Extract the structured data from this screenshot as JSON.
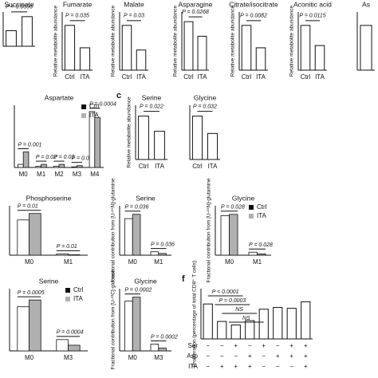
{
  "chart_data": [
    {
      "type": "bar",
      "title": "Succinate",
      "values": [
        1.0,
        1.9
      ],
      "ylim": [
        0,
        2.2
      ],
      "pvalue": "P = 0.0096",
      "color": "#ffffff"
    },
    {
      "type": "bar",
      "title": "Fumarate",
      "ylabel": "Relative metabolite abundance",
      "categories": [
        "Ctrl",
        "ITA"
      ],
      "values": [
        1.0,
        0.5
      ],
      "ylim": [
        0,
        1.3
      ],
      "pvalue": "P = 0.035",
      "color": "#ffffff"
    },
    {
      "type": "bar",
      "title": "Malate",
      "ylabel": "Relative metabolite abundance",
      "categories": [
        "Ctrl",
        "ITA"
      ],
      "values": [
        1.0,
        0.45
      ],
      "ylim": [
        0,
        1.3
      ],
      "pvalue": "P = 0.03",
      "color": "#ffffff"
    },
    {
      "type": "bar",
      "title": "Asparagine",
      "ylabel": "Relative metabolite abundance",
      "categories": [
        "Ctrl",
        "ITA"
      ],
      "values": [
        1.0,
        0.7
      ],
      "ylim": [
        0,
        1.2
      ],
      "pvalue": "P = 0.0268",
      "color": "#ffffff"
    },
    {
      "type": "bar",
      "title": "Citrate/isocitrate",
      "ylabel": "Relative metabolite abundance",
      "categories": [
        "Ctrl",
        "ITA"
      ],
      "values": [
        1.0,
        0.5
      ],
      "ylim": [
        0,
        1.3
      ],
      "pvalue": "P = 0.0082",
      "color": "#ffffff"
    },
    {
      "type": "bar",
      "title": "Aconitic acid",
      "ylabel": "Relative metabolite abundance",
      "categories": [
        "Ctrl",
        "ITA"
      ],
      "values": [
        1.0,
        0.55
      ],
      "ylim": [
        0,
        1.3
      ],
      "pvalue": "P = 0.0115",
      "color": "#ffffff"
    },
    {
      "type": "bar",
      "title": "As",
      "values": [
        1.0
      ],
      "ylim": [
        0,
        1.3
      ],
      "color": "#ffffff"
    },
    {
      "type": "grouped",
      "title": "Aspartate",
      "categories": [
        "M0",
        "M1",
        "M2",
        "M3",
        "M4"
      ],
      "ylim": [
        0,
        1
      ],
      "series": [
        {
          "name": "Ctrl",
          "color": "#ffffff",
          "values": [
            0.05,
            0.02,
            0.02,
            0.01,
            0.9
          ]
        },
        {
          "name": "ITA",
          "color": "#b0b0b0",
          "values": [
            0.25,
            0.05,
            0.05,
            0.03,
            0.8
          ]
        }
      ],
      "pvalues": [
        "P = 0.001",
        "P = 0.02",
        "P = 0.03",
        "P = 0.0025",
        "P = 0.0004"
      ]
    },
    {
      "type": "bar",
      "panel": "c",
      "title": "Serine",
      "ylabel": "Relative metabolite abundance",
      "categories": [
        "Ctrl",
        "ITA"
      ],
      "values": [
        1.0,
        0.65
      ],
      "ylim": [
        0,
        1.25
      ],
      "pvalue": "P = 0.022",
      "color": "#ffffff"
    },
    {
      "type": "bar",
      "title": "Glycine",
      "categories": [
        "Ctrl",
        "ITA"
      ],
      "values": [
        1.0,
        0.6
      ],
      "ylim": [
        0,
        1.25
      ],
      "pvalue": "P = 0.032",
      "color": "#ffffff"
    },
    {
      "type": "grouped",
      "title": "Phosphoserine",
      "categories": [
        "M0",
        "M1"
      ],
      "ylim": [
        0,
        1.15
      ],
      "series": [
        {
          "name": "Ctrl",
          "color": "#ffffff",
          "values": [
            0.82,
            0.03
          ]
        },
        {
          "name": "ITA",
          "color": "#b0b0b0",
          "values": [
            0.97,
            0.01
          ]
        }
      ],
      "pvalues": [
        "P = 0.01",
        "P = 0.01"
      ],
      "legend": false
    },
    {
      "type": "grouped",
      "title": "Serine",
      "ylabel": "Fractional contribution from [U-¹⁵N]-glutamine",
      "categories": [
        "M0",
        "M1"
      ],
      "ylim": [
        0,
        1.15
      ],
      "series": [
        {
          "name": "Ctrl",
          "color": "#ffffff",
          "values": [
            0.85,
            0.08
          ]
        },
        {
          "name": "ITA",
          "color": "#b0b0b0",
          "values": [
            0.95,
            0.04
          ]
        }
      ],
      "pvalues": [
        "P = 0.036",
        "P = 0.036"
      ],
      "legend": false
    },
    {
      "type": "grouped",
      "title": "Glycine",
      "ylabel": "Fractional contribution from [U-¹⁵N]-glutamine",
      "categories": [
        "M0",
        "M1"
      ],
      "ylim": [
        0,
        1.15
      ],
      "series": [
        {
          "name": "Ctrl",
          "color": "#ffffff",
          "values": [
            0.92,
            0.07
          ]
        },
        {
          "name": "ITA",
          "color": "#b0b0b0",
          "values": [
            0.95,
            0.03
          ]
        }
      ],
      "pvalues": [
        "P = 0.028",
        "P = 0.028"
      ],
      "legend": true
    },
    {
      "type": "grouped",
      "title": "Serine",
      "categories": [
        "M0",
        "M3"
      ],
      "ylim": [
        0,
        1.1
      ],
      "series": [
        {
          "name": "Ctrl",
          "color": "#ffffff",
          "values": [
            0.78,
            0.2
          ]
        },
        {
          "name": "ITA",
          "color": "#b0b0b0",
          "values": [
            0.9,
            0.1
          ]
        }
      ],
      "pvalues": [
        "P = 0.0005",
        "P = 0.0004"
      ],
      "legend": true
    },
    {
      "type": "grouped",
      "title": "Glycine",
      "ylabel": "Fractional contribution from [U-¹³C]-glucose",
      "categories": [
        "M0",
        "M3"
      ],
      "ylim": [
        0,
        1.1
      ],
      "series": [
        {
          "name": "Ctrl",
          "color": "#ffffff",
          "values": [
            0.88,
            0.12
          ]
        },
        {
          "name": "ITA",
          "color": "#b0b0b0",
          "values": [
            0.95,
            0.05
          ]
        }
      ],
      "pvalues": [
        "P = 0.0002",
        "P = 0.0002"
      ],
      "legend": false
    },
    {
      "type": "bar",
      "panel": "f",
      "ylabel": "Proliferation (percentage of total CD8⁺ T cells)",
      "values": [
        0.8,
        0.4,
        0.32,
        0.42,
        0.68,
        0.72,
        0.7,
        0.85
      ],
      "ylim": [
        0,
        1.15
      ],
      "color": "#ffffff",
      "annotations": [
        "P < 0.0001",
        "P = 0.0003",
        "NS",
        "NS"
      ],
      "conditions": [
        {
          "label": "Ser",
          "signs": [
            "−",
            "−",
            "+",
            "−",
            "+",
            "−",
            "+",
            "+"
          ]
        },
        {
          "label": "Asp",
          "signs": [
            "−",
            "−",
            "−",
            "+",
            "−",
            "+",
            "+",
            "+"
          ]
        },
        {
          "label": "ITA",
          "signs": [
            "−",
            "+",
            "+",
            "+",
            "−",
            "−",
            "−",
            "+"
          ]
        }
      ]
    }
  ]
}
